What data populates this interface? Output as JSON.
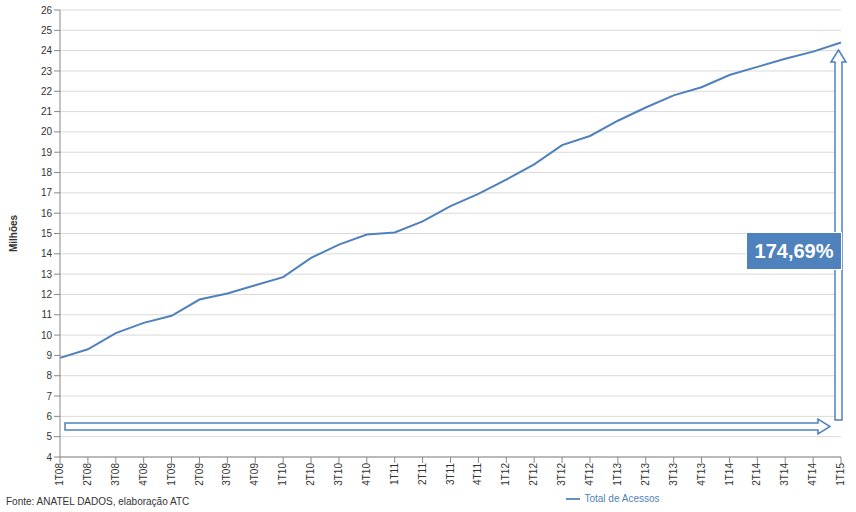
{
  "chart_data": {
    "type": "line",
    "y_label": "Milhões",
    "categories": [
      "1T08",
      "2T08",
      "3T08",
      "4T08",
      "1T09",
      "2T09",
      "3T09",
      "4T09",
      "1T10",
      "2T10",
      "3T10",
      "4T10",
      "1T11",
      "2T11",
      "3T11",
      "4T11",
      "1T12",
      "2T12",
      "3T12",
      "4T12",
      "1T13",
      "2T13",
      "3T13",
      "4T13",
      "1T14",
      "2T14",
      "3T14",
      "4T14",
      "1T15"
    ],
    "series": [
      {
        "name": "Total de Acessos",
        "color": "#4f81bd",
        "values": [
          8.88,
          9.3,
          10.1,
          10.6,
          10.95,
          11.75,
          12.05,
          12.45,
          12.85,
          13.8,
          14.45,
          14.95,
          15.05,
          15.6,
          16.35,
          16.95,
          17.65,
          18.4,
          19.35,
          19.8,
          20.55,
          21.2,
          21.8,
          22.2,
          22.8,
          23.2,
          23.6,
          23.95,
          24.4
        ]
      }
    ],
    "ylim": [
      4,
      26
    ],
    "yticks": [
      4,
      5,
      6,
      7,
      8,
      9,
      10,
      11,
      12,
      13,
      14,
      15,
      16,
      17,
      18,
      19,
      20,
      21,
      22,
      23,
      24,
      25,
      26
    ],
    "grid": true,
    "legend": "bottom",
    "annotation": "174,69%",
    "source": "Fonte: ANATEL DADOS, elaboração ATC"
  }
}
